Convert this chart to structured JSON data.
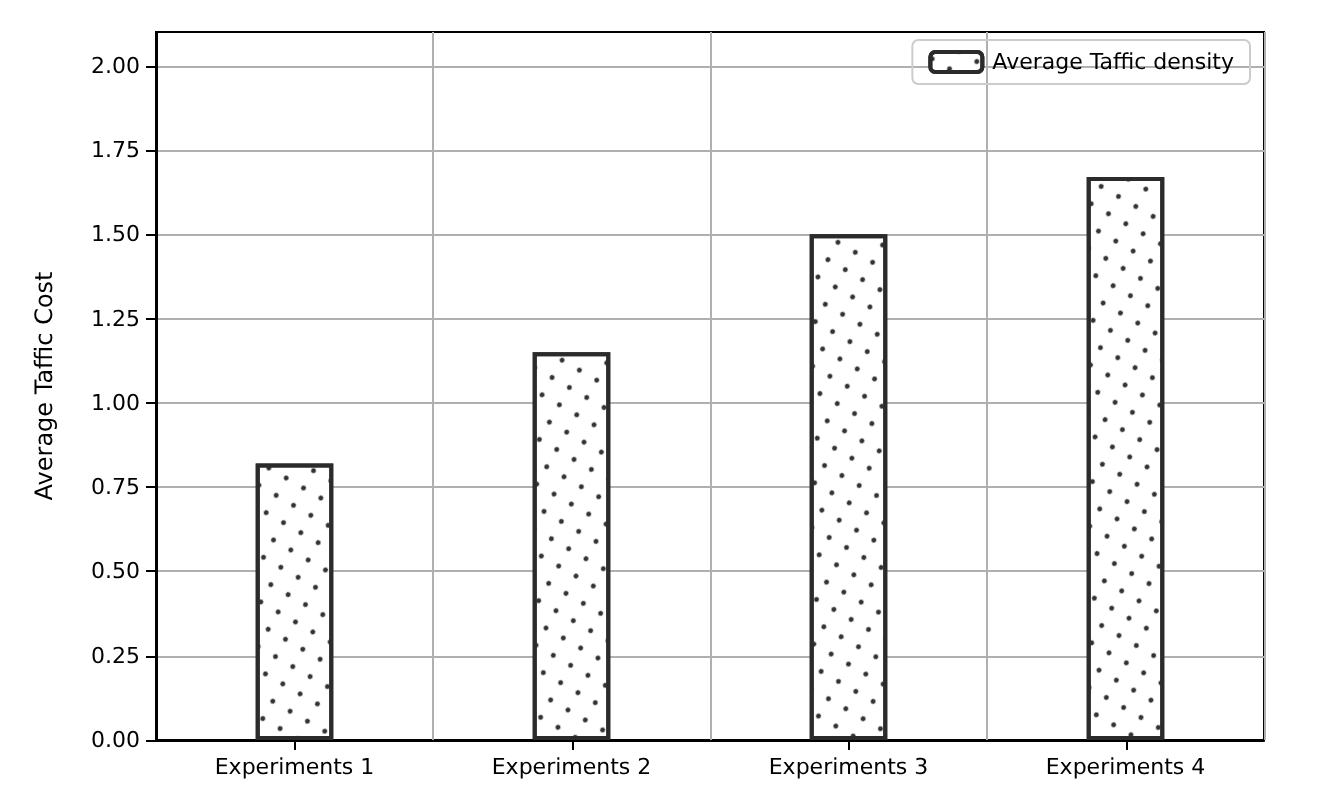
{
  "chart_data": {
    "type": "bar",
    "ylabel": "Average Taffic Cost",
    "categories": [
      "Experiments 1",
      "Experiments 2",
      "Experiments 3",
      "Experiments 4"
    ],
    "series": [
      {
        "name": "Average Taffic density",
        "color": "#ffffff",
        "values": [
          0.82,
          1.15,
          1.5,
          1.67
        ]
      }
    ],
    "ylim": [
      0,
      2.1
    ],
    "yticks": [
      {
        "value": 0,
        "label": "0.00"
      },
      {
        "value": 0.25,
        "label": "0.25"
      },
      {
        "value": 0.5,
        "label": "0.50"
      },
      {
        "value": 0.75,
        "label": "0.75"
      },
      {
        "value": 1,
        "label": "1.00"
      },
      {
        "value": 1.25,
        "label": "1.25"
      },
      {
        "value": 1.5,
        "label": "1.50"
      },
      {
        "value": 1.75,
        "label": "1.75"
      },
      {
        "value": 2,
        "label": "2.00"
      }
    ],
    "grid": true,
    "legend": "top right"
  }
}
